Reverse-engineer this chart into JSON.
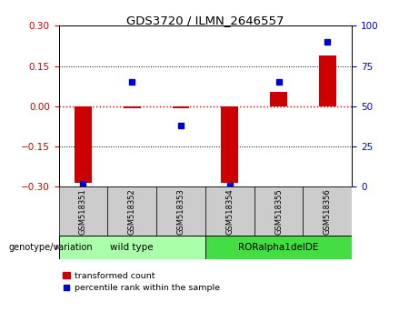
{
  "title": "GDS3720 / ILMN_2646557",
  "samples": [
    "GSM518351",
    "GSM518352",
    "GSM518353",
    "GSM518354",
    "GSM518355",
    "GSM518356"
  ],
  "red_values": [
    -0.285,
    -0.008,
    -0.008,
    -0.285,
    0.055,
    0.19
  ],
  "blue_values": [
    2,
    65,
    38,
    1,
    65,
    90
  ],
  "ylim_left": [
    -0.3,
    0.3
  ],
  "ylim_right": [
    0,
    100
  ],
  "yticks_left": [
    -0.3,
    -0.15,
    0,
    0.15,
    0.3
  ],
  "yticks_right": [
    0,
    25,
    50,
    75,
    100
  ],
  "red_color": "#cc0000",
  "blue_color": "#0000cc",
  "group1_label": "wild type",
  "group2_label": "RORalpha1delDE",
  "group1_color": "#aaffaa",
  "group2_color": "#44dd44",
  "genotype_label": "genotype/variation",
  "legend_red_label": "transformed count",
  "legend_blue_label": "percentile rank within the sample",
  "sample_bg_color": "#cccccc",
  "bar_width": 0.35
}
